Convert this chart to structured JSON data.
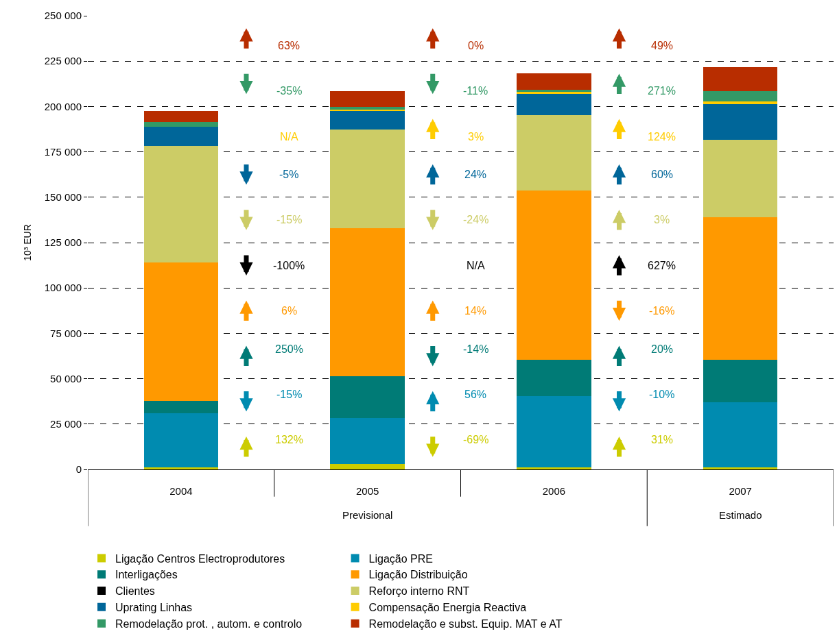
{
  "chart_data": {
    "type": "bar",
    "stacked": true,
    "ylabel": "10³ EUR",
    "categories": [
      "2004",
      "2005",
      "2006",
      "2007"
    ],
    "series": [
      {
        "name": "Ligação Centros Electroprodutores",
        "color": "#cccc00",
        "values": [
          1000,
          3000,
          1000,
          1000
        ]
      },
      {
        "name": "Ligação PRE",
        "color": "#008bb0",
        "values": [
          30000,
          25400,
          39300,
          36000
        ]
      },
      {
        "name": "Interligações",
        "color": "#007b76",
        "values": [
          6600,
          23000,
          20100,
          23400
        ]
      },
      {
        "name": "Ligação Distribuição",
        "color": "#ff9900",
        "values": [
          76400,
          81600,
          93200,
          78400
        ]
      },
      {
        "name": "Clientes",
        "color": "#000000",
        "values": [
          0,
          0,
          0,
          0
        ]
      },
      {
        "name": "Reforço interno RNT",
        "color": "#cccc66",
        "values": [
          64400,
          54400,
          41700,
          42900
        ]
      },
      {
        "name": "Uprating Linhas",
        "color": "#006699",
        "values": [
          10400,
          10400,
          11900,
          19700
        ]
      },
      {
        "name": "Compensação Energia Reactiva",
        "color": "#ffcc00",
        "values": [
          0,
          400,
          700,
          1500
        ]
      },
      {
        "name": "Remodelação prot. , autom. e controlo",
        "color": "#339966",
        "values": [
          2600,
          1400,
          1500,
          5700
        ]
      },
      {
        "name": "Remodelação e subst. Equip. MAT e AT",
        "color": "#b82d00",
        "values": [
          6100,
          9000,
          8900,
          13000
        ]
      }
    ],
    "ylim": [
      0,
      250000
    ],
    "yticks": [
      {
        "value": 0,
        "label": "0"
      },
      {
        "value": 25000,
        "label": "25 000"
      },
      {
        "value": 50000,
        "label": "50 000"
      },
      {
        "value": 75000,
        "label": "75 000"
      },
      {
        "value": 100000,
        "label": "100 000"
      },
      {
        "value": 125000,
        "label": "125 000"
      },
      {
        "value": 150000,
        "label": "150 000"
      },
      {
        "value": 175000,
        "label": "175 000"
      },
      {
        "value": 200000,
        "label": "200 000"
      },
      {
        "value": 225000,
        "label": "225 000"
      },
      {
        "value": 250000,
        "label": "250 000"
      }
    ],
    "grid": "y",
    "legend": "bottom",
    "annotations": [
      "132%",
      "-15%",
      "250%",
      "6%",
      "-100%",
      "-15%",
      "-5%",
      "N/A",
      "-35%",
      "63%",
      "-69%",
      "56%",
      "-14%",
      "14%",
      "N/A",
      "-24%",
      "24%",
      "3%",
      "-11%",
      "0%",
      "31%",
      "-10%",
      "20%",
      "-16%",
      "627%",
      "3%",
      "60%",
      "124%",
      "271%",
      "49%",
      "Previsional",
      "Estimado"
    ]
  }
}
